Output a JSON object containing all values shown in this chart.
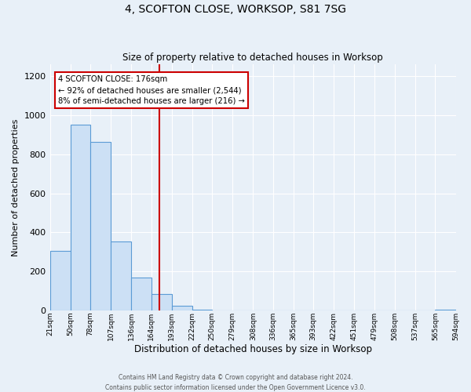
{
  "title": "4, SCOFTON CLOSE, WORKSOP, S81 7SG",
  "subtitle": "Size of property relative to detached houses in Worksop",
  "xlabel": "Distribution of detached houses by size in Worksop",
  "ylabel": "Number of detached properties",
  "bin_edges": [
    21,
    50,
    78,
    107,
    136,
    164,
    193,
    222,
    250,
    279,
    308,
    336,
    365,
    393,
    422,
    451,
    479,
    508,
    537,
    565,
    594
  ],
  "bin_heights": [
    305,
    950,
    865,
    355,
    170,
    85,
    25,
    5,
    0,
    0,
    0,
    0,
    0,
    0,
    0,
    0,
    0,
    0,
    0,
    5
  ],
  "bar_facecolor": "#cce0f5",
  "bar_edgecolor": "#5b9bd5",
  "vline_x": 176,
  "vline_color": "#cc0000",
  "annotation_line1": "4 SCOFTON CLOSE: 176sqm",
  "annotation_line2": "← 92% of detached houses are smaller (2,544)",
  "annotation_line3": "8% of semi-detached houses are larger (216) →",
  "annotation_box_edgecolor": "#cc0000",
  "annotation_box_facecolor": "#ffffff",
  "ylim": [
    0,
    1260
  ],
  "background_color": "#e8f0f8",
  "axes_facecolor": "#e8f0f8",
  "grid_color": "#ffffff",
  "tick_labels": [
    "21sqm",
    "50sqm",
    "78sqm",
    "107sqm",
    "136sqm",
    "164sqm",
    "193sqm",
    "222sqm",
    "250sqm",
    "279sqm",
    "308sqm",
    "336sqm",
    "365sqm",
    "393sqm",
    "422sqm",
    "451sqm",
    "479sqm",
    "508sqm",
    "537sqm",
    "565sqm",
    "594sqm"
  ],
  "footer_line1": "Contains HM Land Registry data © Crown copyright and database right 2024.",
  "footer_line2": "Contains public sector information licensed under the Open Government Licence v3.0."
}
